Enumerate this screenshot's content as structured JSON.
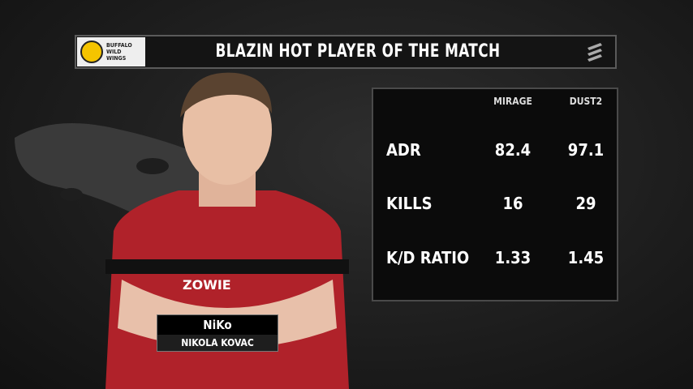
{
  "header": {
    "title": "BLAZIN HOT PLAYER OF THE MATCH",
    "sponsor": "BUFFALO WILD WINGS",
    "brand_icon": "eleague-icon"
  },
  "stats": {
    "columns": [
      "MIRAGE",
      "DUST2"
    ],
    "rows": [
      {
        "label": "ADR",
        "values": [
          "82.4",
          "97.1"
        ]
      },
      {
        "label": "KILLS",
        "values": [
          "16",
          "29"
        ]
      },
      {
        "label": "K/D RATIO",
        "values": [
          "1.33",
          "1.45"
        ]
      }
    ]
  },
  "player": {
    "nickname": "NiKo",
    "real_name": "NIKOLA KOVAC",
    "jersey_sponsor": "ZOWIE",
    "jersey_color": "#b0222a"
  }
}
